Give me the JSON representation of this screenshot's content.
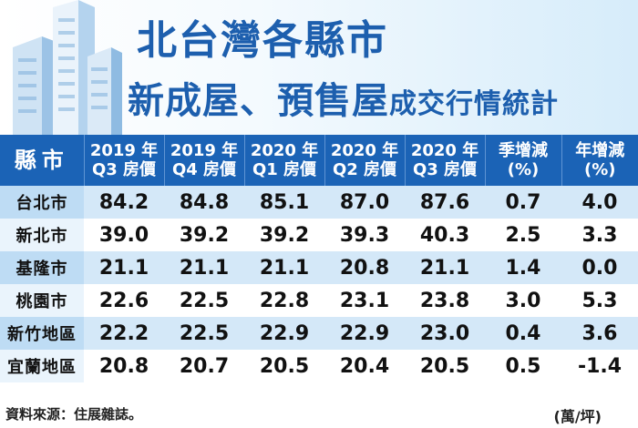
{
  "title": {
    "line1": "北台灣各縣市",
    "line2_big": "新成屋、預售屋",
    "line2_small": "成交行情統計"
  },
  "table": {
    "city_header": "縣市",
    "columns": [
      [
        "2019 年",
        "Q3 房價"
      ],
      [
        "2019 年",
        "Q4 房價"
      ],
      [
        "2020 年",
        "Q1 房價"
      ],
      [
        "2020 年",
        "Q2 房價"
      ],
      [
        "2020 年",
        "Q3 房價"
      ],
      [
        "季增減",
        "(%)"
      ],
      [
        "年增減",
        "(%)"
      ]
    ]
  },
  "chart_data": {
    "type": "table",
    "title": "北台灣各縣市新成屋、預售屋成交行情統計",
    "columns": [
      "縣市",
      "2019 年 Q3 房價",
      "2019 年 Q4 房價",
      "2020 年 Q1 房價",
      "2020 年 Q2 房價",
      "2020 年 Q3 房價",
      "季增減 (%)",
      "年增減 (%)"
    ],
    "rows": [
      {
        "city": "台北市",
        "values": [
          "84.2",
          "84.8",
          "85.1",
          "87.0",
          "87.6",
          "0.7",
          "4.0"
        ]
      },
      {
        "city": "新北市",
        "values": [
          "39.0",
          "39.2",
          "39.2",
          "39.3",
          "40.3",
          "2.5",
          "3.3"
        ]
      },
      {
        "city": "基隆市",
        "values": [
          "21.1",
          "21.1",
          "21.1",
          "20.8",
          "21.1",
          "1.4",
          "0.0"
        ]
      },
      {
        "city": "桃園市",
        "values": [
          "22.6",
          "22.5",
          "22.8",
          "23.1",
          "23.8",
          "3.0",
          "5.3"
        ]
      },
      {
        "city": "新竹地區",
        "values": [
          "22.2",
          "22.5",
          "22.9",
          "22.9",
          "23.0",
          "0.4",
          "3.6"
        ]
      },
      {
        "city": "宜蘭地區",
        "values": [
          "20.8",
          "20.7",
          "20.5",
          "20.4",
          "20.5",
          "0.5",
          "-1.4"
        ]
      }
    ],
    "unit": "(萬/坪)"
  },
  "footer": {
    "source": "資料來源：住展雜誌。",
    "unit": "(萬/坪)"
  },
  "colors": {
    "title": "#1d5fae",
    "header_bg": "#1b63b6",
    "row_tint": "#d4e8f8"
  }
}
